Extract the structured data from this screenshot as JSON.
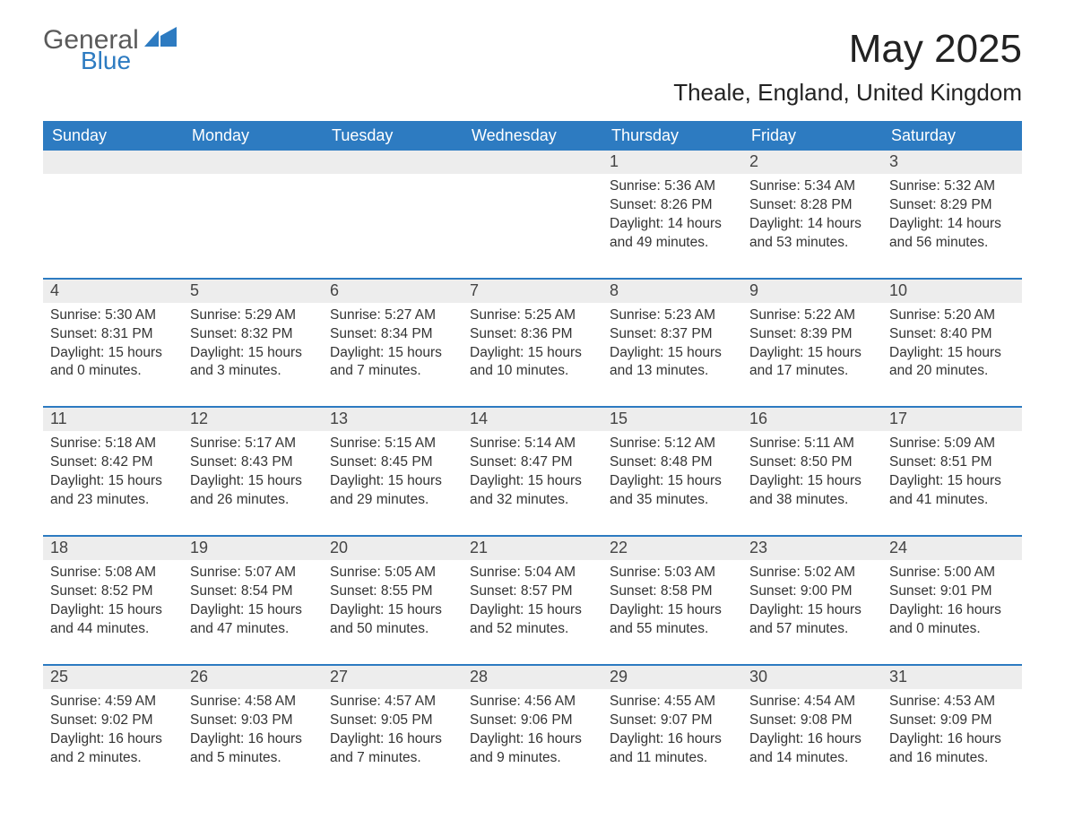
{
  "brand": {
    "word1": "General",
    "word2": "Blue",
    "accent_color": "#2d7bc1",
    "text_color": "#5a5a5a"
  },
  "title": "May 2025",
  "location": "Theale, England, United Kingdom",
  "header_bg": "#2d7bc1",
  "daynum_bg": "#ededed",
  "border_color": "#2d7bc1",
  "text_color": "#333333",
  "background_color": "#ffffff",
  "font_family": "Arial",
  "weekdays": [
    "Sunday",
    "Monday",
    "Tuesday",
    "Wednesday",
    "Thursday",
    "Friday",
    "Saturday"
  ],
  "weeks": [
    [
      {
        "n": "",
        "lines": []
      },
      {
        "n": "",
        "lines": []
      },
      {
        "n": "",
        "lines": []
      },
      {
        "n": "",
        "lines": []
      },
      {
        "n": "1",
        "lines": [
          "Sunrise: 5:36 AM",
          "Sunset: 8:26 PM",
          "Daylight: 14 hours and 49 minutes."
        ]
      },
      {
        "n": "2",
        "lines": [
          "Sunrise: 5:34 AM",
          "Sunset: 8:28 PM",
          "Daylight: 14 hours and 53 minutes."
        ]
      },
      {
        "n": "3",
        "lines": [
          "Sunrise: 5:32 AM",
          "Sunset: 8:29 PM",
          "Daylight: 14 hours and 56 minutes."
        ]
      }
    ],
    [
      {
        "n": "4",
        "lines": [
          "Sunrise: 5:30 AM",
          "Sunset: 8:31 PM",
          "Daylight: 15 hours and 0 minutes."
        ]
      },
      {
        "n": "5",
        "lines": [
          "Sunrise: 5:29 AM",
          "Sunset: 8:32 PM",
          "Daylight: 15 hours and 3 minutes."
        ]
      },
      {
        "n": "6",
        "lines": [
          "Sunrise: 5:27 AM",
          "Sunset: 8:34 PM",
          "Daylight: 15 hours and 7 minutes."
        ]
      },
      {
        "n": "7",
        "lines": [
          "Sunrise: 5:25 AM",
          "Sunset: 8:36 PM",
          "Daylight: 15 hours and 10 minutes."
        ]
      },
      {
        "n": "8",
        "lines": [
          "Sunrise: 5:23 AM",
          "Sunset: 8:37 PM",
          "Daylight: 15 hours and 13 minutes."
        ]
      },
      {
        "n": "9",
        "lines": [
          "Sunrise: 5:22 AM",
          "Sunset: 8:39 PM",
          "Daylight: 15 hours and 17 minutes."
        ]
      },
      {
        "n": "10",
        "lines": [
          "Sunrise: 5:20 AM",
          "Sunset: 8:40 PM",
          "Daylight: 15 hours and 20 minutes."
        ]
      }
    ],
    [
      {
        "n": "11",
        "lines": [
          "Sunrise: 5:18 AM",
          "Sunset: 8:42 PM",
          "Daylight: 15 hours and 23 minutes."
        ]
      },
      {
        "n": "12",
        "lines": [
          "Sunrise: 5:17 AM",
          "Sunset: 8:43 PM",
          "Daylight: 15 hours and 26 minutes."
        ]
      },
      {
        "n": "13",
        "lines": [
          "Sunrise: 5:15 AM",
          "Sunset: 8:45 PM",
          "Daylight: 15 hours and 29 minutes."
        ]
      },
      {
        "n": "14",
        "lines": [
          "Sunrise: 5:14 AM",
          "Sunset: 8:47 PM",
          "Daylight: 15 hours and 32 minutes."
        ]
      },
      {
        "n": "15",
        "lines": [
          "Sunrise: 5:12 AM",
          "Sunset: 8:48 PM",
          "Daylight: 15 hours and 35 minutes."
        ]
      },
      {
        "n": "16",
        "lines": [
          "Sunrise: 5:11 AM",
          "Sunset: 8:50 PM",
          "Daylight: 15 hours and 38 minutes."
        ]
      },
      {
        "n": "17",
        "lines": [
          "Sunrise: 5:09 AM",
          "Sunset: 8:51 PM",
          "Daylight: 15 hours and 41 minutes."
        ]
      }
    ],
    [
      {
        "n": "18",
        "lines": [
          "Sunrise: 5:08 AM",
          "Sunset: 8:52 PM",
          "Daylight: 15 hours and 44 minutes."
        ]
      },
      {
        "n": "19",
        "lines": [
          "Sunrise: 5:07 AM",
          "Sunset: 8:54 PM",
          "Daylight: 15 hours and 47 minutes."
        ]
      },
      {
        "n": "20",
        "lines": [
          "Sunrise: 5:05 AM",
          "Sunset: 8:55 PM",
          "Daylight: 15 hours and 50 minutes."
        ]
      },
      {
        "n": "21",
        "lines": [
          "Sunrise: 5:04 AM",
          "Sunset: 8:57 PM",
          "Daylight: 15 hours and 52 minutes."
        ]
      },
      {
        "n": "22",
        "lines": [
          "Sunrise: 5:03 AM",
          "Sunset: 8:58 PM",
          "Daylight: 15 hours and 55 minutes."
        ]
      },
      {
        "n": "23",
        "lines": [
          "Sunrise: 5:02 AM",
          "Sunset: 9:00 PM",
          "Daylight: 15 hours and 57 minutes."
        ]
      },
      {
        "n": "24",
        "lines": [
          "Sunrise: 5:00 AM",
          "Sunset: 9:01 PM",
          "Daylight: 16 hours and 0 minutes."
        ]
      }
    ],
    [
      {
        "n": "25",
        "lines": [
          "Sunrise: 4:59 AM",
          "Sunset: 9:02 PM",
          "Daylight: 16 hours and 2 minutes."
        ]
      },
      {
        "n": "26",
        "lines": [
          "Sunrise: 4:58 AM",
          "Sunset: 9:03 PM",
          "Daylight: 16 hours and 5 minutes."
        ]
      },
      {
        "n": "27",
        "lines": [
          "Sunrise: 4:57 AM",
          "Sunset: 9:05 PM",
          "Daylight: 16 hours and 7 minutes."
        ]
      },
      {
        "n": "28",
        "lines": [
          "Sunrise: 4:56 AM",
          "Sunset: 9:06 PM",
          "Daylight: 16 hours and 9 minutes."
        ]
      },
      {
        "n": "29",
        "lines": [
          "Sunrise: 4:55 AM",
          "Sunset: 9:07 PM",
          "Daylight: 16 hours and 11 minutes."
        ]
      },
      {
        "n": "30",
        "lines": [
          "Sunrise: 4:54 AM",
          "Sunset: 9:08 PM",
          "Daylight: 16 hours and 14 minutes."
        ]
      },
      {
        "n": "31",
        "lines": [
          "Sunrise: 4:53 AM",
          "Sunset: 9:09 PM",
          "Daylight: 16 hours and 16 minutes."
        ]
      }
    ]
  ]
}
